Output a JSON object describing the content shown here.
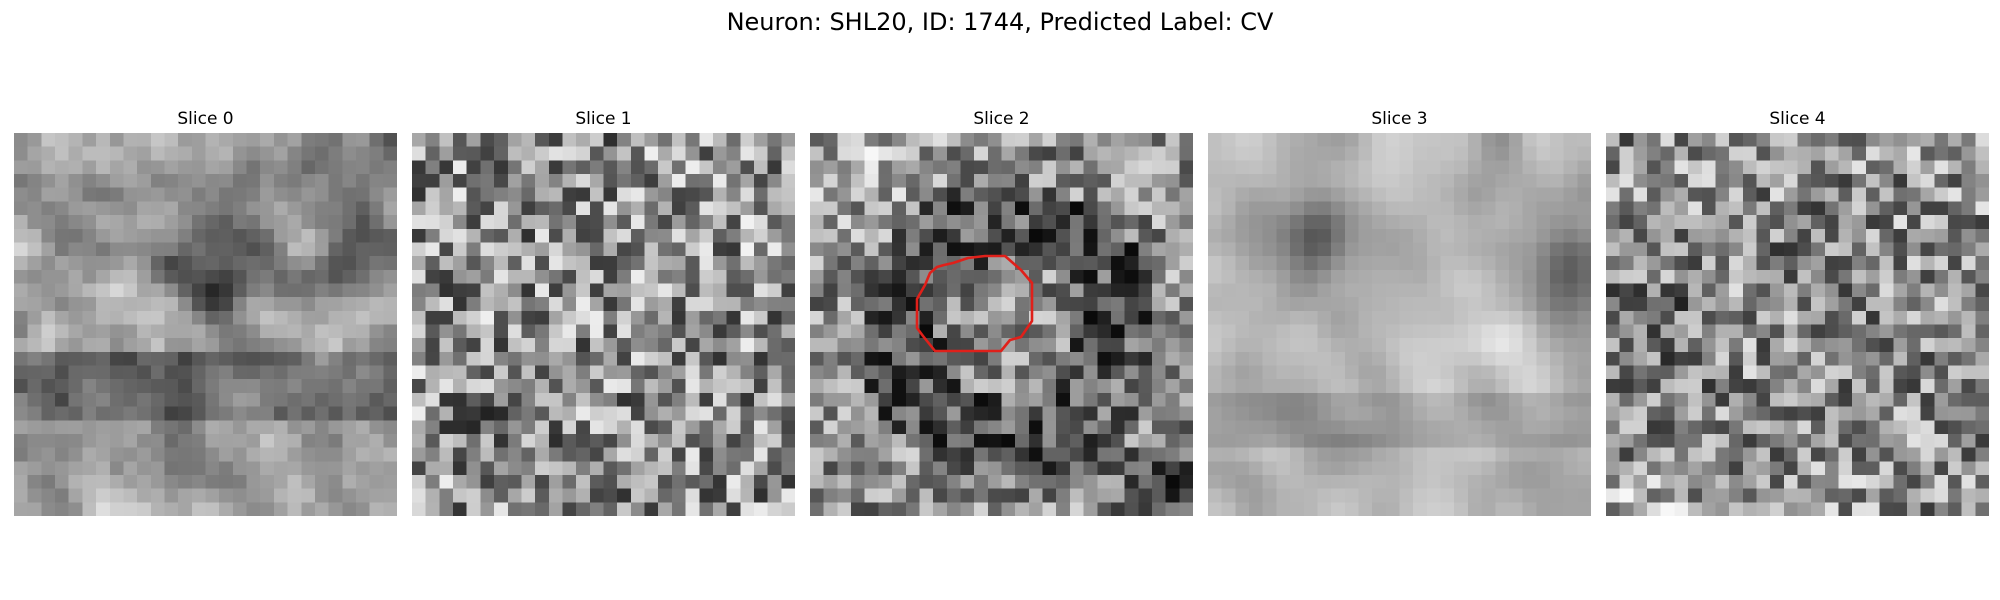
{
  "figure": {
    "title": "Neuron: SHL20, ID: 1744, Predicted Label: CV"
  },
  "panels": [
    {
      "title": "Slice 0",
      "description": "blurry grayscale patch, dark blob upper-right, dark horizontal band lower third",
      "has_outline": false
    },
    {
      "title": "Slice 1",
      "description": "noisy grayscale patch, mottled texture",
      "has_outline": false
    },
    {
      "title": "Slice 2",
      "description": "grayscale patch with darker ring around center, red contour outlining central region",
      "has_outline": true,
      "outline_color": "#e0201a"
    },
    {
      "title": "Slice 3",
      "description": "bright smooth patch with dark spots upper-left and right edge",
      "has_outline": false
    },
    {
      "title": "Slice 4",
      "description": "noisy grayscale patch, darker left-center",
      "has_outline": false
    }
  ],
  "colors": {
    "outline": "#e0201a",
    "background": "#ffffff",
    "text": "#000000"
  }
}
